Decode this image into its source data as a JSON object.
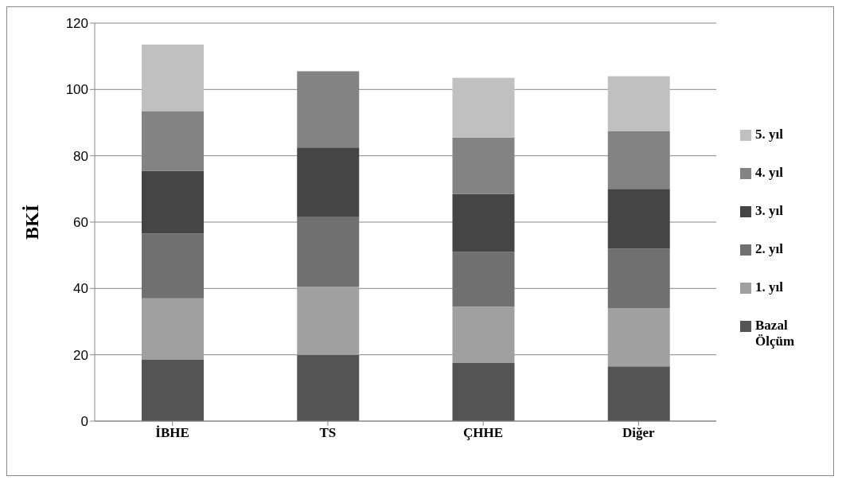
{
  "chart_data": {
    "type": "bar",
    "stacked": true,
    "ylabel": "BKİ",
    "categories": [
      "İBHE",
      "TS",
      "ÇHHE",
      "Diğer"
    ],
    "series": [
      {
        "name": "Bazal Ölçüm",
        "color": "#545454",
        "values": [
          18.5,
          20,
          17.5,
          16.5
        ]
      },
      {
        "name": "1. yıl",
        "color": "#a0a0a0",
        "values": [
          18.5,
          20.5,
          17,
          17.5
        ]
      },
      {
        "name": "2. yıl",
        "color": "#707070",
        "values": [
          19.5,
          21,
          16.5,
          18
        ]
      },
      {
        "name": "3. yıl",
        "color": "#454545",
        "values": [
          19,
          21,
          17.5,
          18
        ]
      },
      {
        "name": "4. yıl",
        "color": "#838383",
        "values": [
          18,
          23,
          17,
          17.5
        ]
      },
      {
        "name": "5. yıl",
        "color": "#c0c0c0",
        "values": [
          20,
          null,
          18,
          16.5
        ]
      }
    ],
    "ylim": [
      0,
      120
    ],
    "yticks": [
      0,
      20,
      40,
      60,
      80,
      100,
      120
    ],
    "grid": "y",
    "legend": "right"
  }
}
